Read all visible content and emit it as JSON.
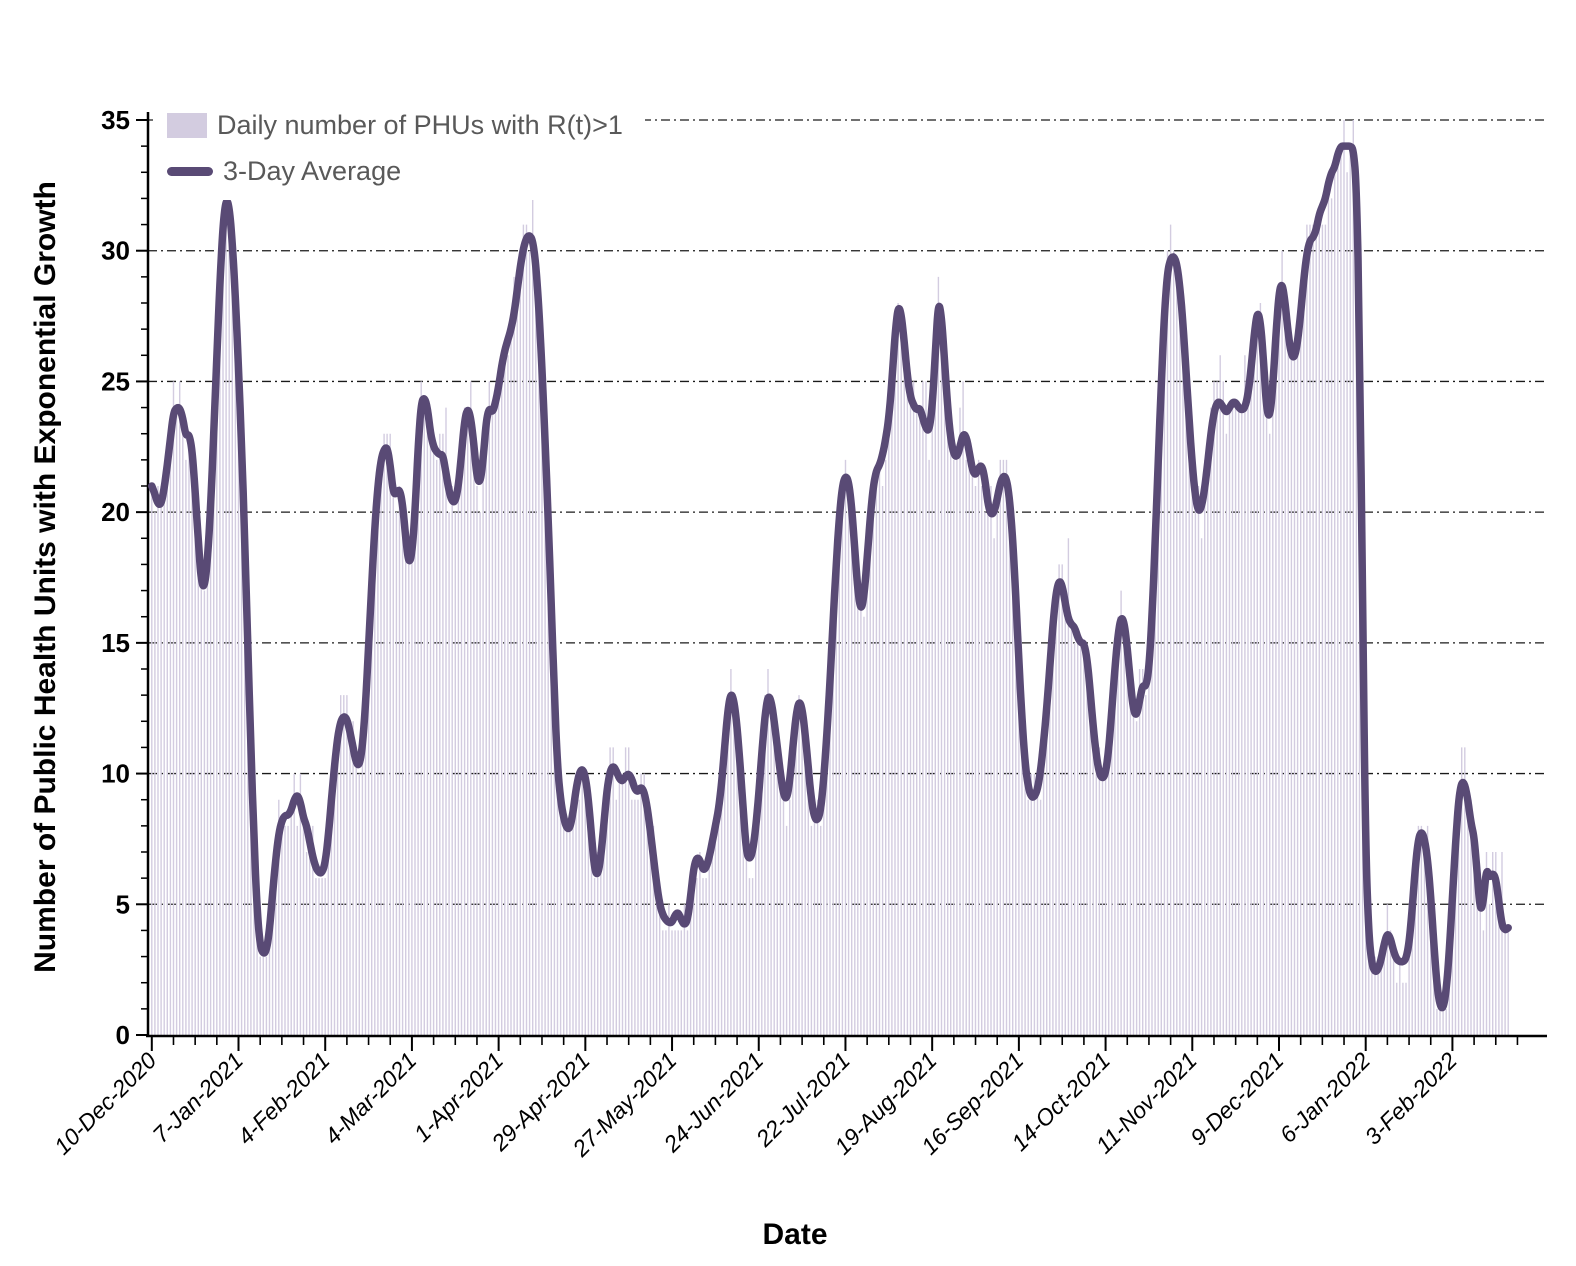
{
  "chart_data": {
    "type": "bar+line",
    "title": "",
    "xlabel": "Date",
    "ylabel": "Number of Public Health Units with Exponential Growth",
    "ylim": [
      0,
      35
    ],
    "y_major_ticks": [
      0,
      5,
      10,
      15,
      20,
      25,
      30,
      35
    ],
    "y_minor_step": 1,
    "grid": "horizontal-dashed",
    "x_tick_interval_days": 28,
    "x_minor_interval_days": 7,
    "x_tick_labels": [
      "10-Dec-2020",
      "7-Jan-2021",
      "4-Feb-2021",
      "4-Mar-2021",
      "1-Apr-2021",
      "29-Apr-2021",
      "27-May-2021",
      "24-Jun-2021",
      "22-Jul-2021",
      "19-Aug-2021",
      "16-Sep-2021",
      "14-Oct-2021",
      "11-Nov-2021",
      "9-Dec-2021",
      "6-Jan-2022",
      "3-Feb-2022"
    ],
    "legend": {
      "position": "top-left",
      "items": [
        {
          "label": "Daily number of PHUs with R(t)>1",
          "type": "bar",
          "color": "#d3cce0"
        },
        {
          "label": "3-Day Average",
          "type": "line",
          "color": "#594a75"
        }
      ]
    },
    "series": [
      {
        "name": "Daily number of PHUs with R(t)>1",
        "type": "bar",
        "color": "#d3cce0",
        "derived_from_average": true,
        "noise_amplitude": 1.1,
        "overrides": {
          "24": 32,
          "59": 11,
          "62": 13,
          "76": 23,
          "95": 24,
          "103": 25,
          "117": 29,
          "123": 32,
          "148": 11,
          "153": 11,
          "187": 14,
          "199": 14,
          "209": 13,
          "241": 28,
          "250": 25,
          "254": 29,
          "262": 25,
          "276": 22,
          "296": 19,
          "313": 17,
          "329": 31,
          "339": 19,
          "345": 26,
          "353": 26,
          "365": 30,
          "373": 31,
          "384": 34,
          "399": 5,
          "410": 8,
          "416": 1,
          "423": 11,
          "426": 9,
          "431": 7,
          "436": 7
        }
      },
      {
        "name": "3-Day Average",
        "type": "line",
        "color": "#594a75",
        "stroke_width": 7.5,
        "start_date": "10-Dec-2020",
        "values": [
          21.0,
          20.7,
          20.3,
          20.3,
          20.9,
          21.8,
          22.8,
          23.8,
          24.0,
          24.0,
          23.6,
          22.9,
          23.0,
          22.4,
          20.8,
          18.9,
          17.3,
          17.1,
          18.2,
          20.2,
          23.0,
          26.0,
          28.8,
          31.0,
          32.0,
          31.7,
          30.3,
          28.2,
          25.5,
          22.5,
          19.0,
          15.0,
          11.0,
          7.5,
          4.8,
          3.4,
          3.1,
          3.2,
          4.0,
          5.4,
          6.7,
          7.7,
          8.2,
          8.4,
          8.4,
          8.6,
          9.0,
          9.2,
          8.9,
          8.3,
          8.0,
          7.4,
          6.8,
          6.4,
          6.2,
          6.2,
          6.6,
          7.6,
          9.0,
          10.3,
          11.4,
          12.0,
          12.2,
          12.1,
          11.6,
          11.0,
          10.4,
          10.3,
          11.0,
          12.6,
          14.8,
          17.2,
          19.4,
          21.0,
          22.0,
          22.4,
          22.5,
          21.8,
          20.7,
          20.7,
          20.9,
          20.3,
          19.0,
          18.0,
          18.4,
          20.0,
          22.5,
          24.2,
          24.4,
          24.0,
          23.0,
          22.5,
          22.3,
          22.2,
          22.2,
          21.5,
          20.8,
          20.4,
          20.4,
          21.0,
          22.2,
          23.5,
          24.0,
          23.6,
          22.6,
          21.3,
          21.1,
          22.0,
          23.5,
          24.0,
          23.8,
          24.2,
          24.8,
          25.6,
          26.2,
          26.6,
          27.0,
          27.6,
          28.5,
          29.4,
          30.1,
          30.5,
          30.6,
          30.4,
          29.5,
          27.8,
          25.5,
          22.8,
          19.8,
          16.5,
          13.0,
          10.3,
          9.0,
          8.3,
          7.9,
          7.9,
          8.5,
          9.4,
          10.0,
          10.2,
          9.9,
          9.0,
          7.6,
          6.3,
          6.1,
          6.8,
          8.1,
          9.4,
          10.1,
          10.3,
          10.1,
          9.8,
          9.7,
          9.9,
          10.0,
          9.8,
          9.4,
          9.3,
          9.5,
          9.3,
          8.7,
          7.8,
          6.8,
          5.8,
          5.0,
          4.6,
          4.4,
          4.3,
          4.3,
          4.6,
          4.7,
          4.4,
          4.2,
          4.4,
          5.3,
          6.4,
          6.8,
          6.7,
          6.3,
          6.4,
          6.8,
          7.4,
          8.0,
          8.6,
          9.6,
          11.0,
          12.4,
          13.1,
          12.8,
          11.8,
          10.3,
          8.6,
          7.0,
          6.7,
          7.0,
          7.9,
          9.2,
          10.8,
          12.2,
          13.0,
          12.8,
          12.0,
          11.0,
          10.0,
          9.2,
          9.0,
          9.7,
          11.0,
          12.2,
          12.8,
          12.5,
          11.5,
          10.2,
          9.0,
          8.3,
          8.2,
          8.6,
          9.8,
          11.5,
          13.5,
          15.8,
          18.0,
          19.8,
          21.0,
          21.4,
          21.2,
          20.2,
          18.6,
          17.0,
          16.2,
          16.8,
          18.2,
          19.8,
          21.0,
          21.6,
          21.8,
          22.2,
          22.8,
          23.6,
          25.0,
          26.8,
          27.9,
          27.6,
          26.5,
          25.2,
          24.4,
          24.1,
          23.9,
          24.0,
          23.6,
          23.2,
          23.1,
          24.0,
          26.0,
          28.1,
          27.5,
          25.8,
          24.0,
          22.8,
          22.2,
          22.1,
          22.5,
          23.0,
          22.9,
          22.3,
          21.6,
          21.4,
          21.7,
          21.8,
          21.3,
          20.3,
          19.9,
          20.0,
          20.5,
          21.1,
          21.4,
          21.3,
          20.5,
          19.0,
          16.8,
          14.3,
          12.1,
          10.4,
          9.5,
          9.1,
          9.1,
          9.4,
          10.1,
          11.2,
          12.5,
          14.1,
          15.7,
          16.9,
          17.4,
          17.2,
          16.5,
          15.9,
          15.7,
          15.6,
          15.2,
          15.0,
          15.0,
          14.4,
          13.2,
          11.8,
          10.7,
          10.0,
          9.8,
          10.0,
          10.9,
          12.4,
          14.0,
          15.3,
          16.0,
          15.8,
          14.8,
          13.5,
          12.4,
          12.2,
          12.8,
          13.4,
          13.3,
          14.0,
          16.0,
          18.8,
          22.0,
          25.0,
          27.6,
          29.2,
          29.7,
          29.8,
          29.5,
          28.6,
          27.2,
          25.4,
          23.5,
          21.8,
          20.6,
          20.0,
          20.2,
          20.9,
          21.9,
          23.0,
          23.8,
          24.2,
          24.2,
          24.0,
          23.8,
          24.0,
          24.2,
          24.2,
          24.0,
          23.9,
          24.0,
          24.5,
          25.5,
          26.8,
          27.7,
          27.3,
          25.8,
          23.9,
          23.6,
          24.8,
          26.8,
          28.4,
          28.8,
          28.0,
          26.8,
          26.0,
          25.9,
          26.5,
          27.6,
          28.9,
          29.9,
          30.4,
          30.5,
          30.8,
          31.4,
          31.7,
          32.0,
          32.6,
          33.0,
          33.2,
          33.7,
          34.0,
          34.0,
          34.0,
          34.0,
          33.9,
          32.5,
          27.0,
          16.0,
          7.0,
          3.8,
          2.7,
          2.4,
          2.5,
          2.9,
          3.5,
          3.9,
          3.7,
          3.2,
          2.9,
          2.8,
          2.8,
          2.9,
          3.5,
          4.8,
          6.4,
          7.5,
          7.8,
          7.5,
          6.7,
          5.3,
          3.5,
          1.9,
          1.1,
          1.0,
          1.7,
          3.2,
          5.3,
          7.3,
          9.0,
          9.7,
          9.6,
          9.0,
          8.1,
          7.6,
          6.2,
          4.7,
          5.1,
          6.4,
          6.0,
          6.2,
          6.0,
          5.1,
          4.2,
          4.0,
          4.1
        ]
      }
    ],
    "axis_colors": {
      "axis": "#000000",
      "gridline": "#1a1a1a",
      "tick_label": "#000000"
    }
  }
}
